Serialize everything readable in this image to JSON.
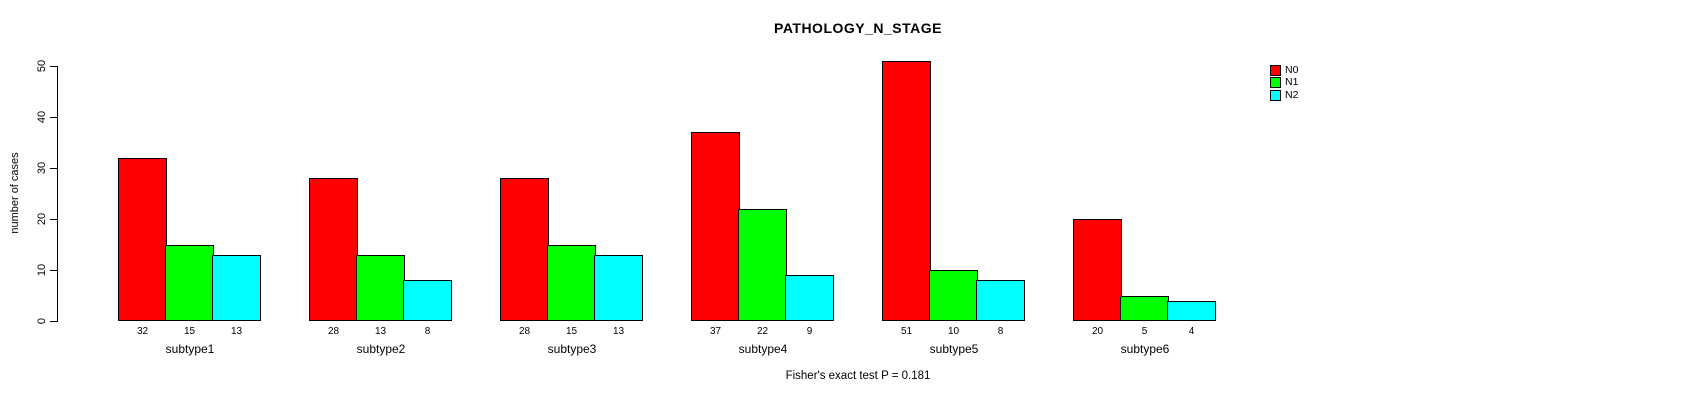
{
  "chart_data": {
    "type": "bar",
    "title": "PATHOLOGY_N_STAGE",
    "xlabel": "",
    "ylabel": "number of cases",
    "ylim": [
      0,
      50
    ],
    "yticks": [
      0,
      10,
      20,
      30,
      40,
      50
    ],
    "grid": false,
    "legend_position": "top-right",
    "categories": [
      "subtype1",
      "subtype2",
      "subtype3",
      "subtype4",
      "subtype5",
      "subtype6"
    ],
    "series": [
      {
        "name": "N0",
        "color": "#ff0000",
        "values": [
          32,
          28,
          28,
          37,
          51,
          20
        ]
      },
      {
        "name": "N1",
        "color": "#00ff00",
        "values": [
          15,
          13,
          15,
          22,
          10,
          5
        ]
      },
      {
        "name": "N2",
        "color": "#00ffff",
        "values": [
          13,
          8,
          13,
          9,
          8,
          4
        ]
      }
    ],
    "bar_value_labels_shown": true,
    "annotation": "Fisher's exact test P = 0.181"
  }
}
